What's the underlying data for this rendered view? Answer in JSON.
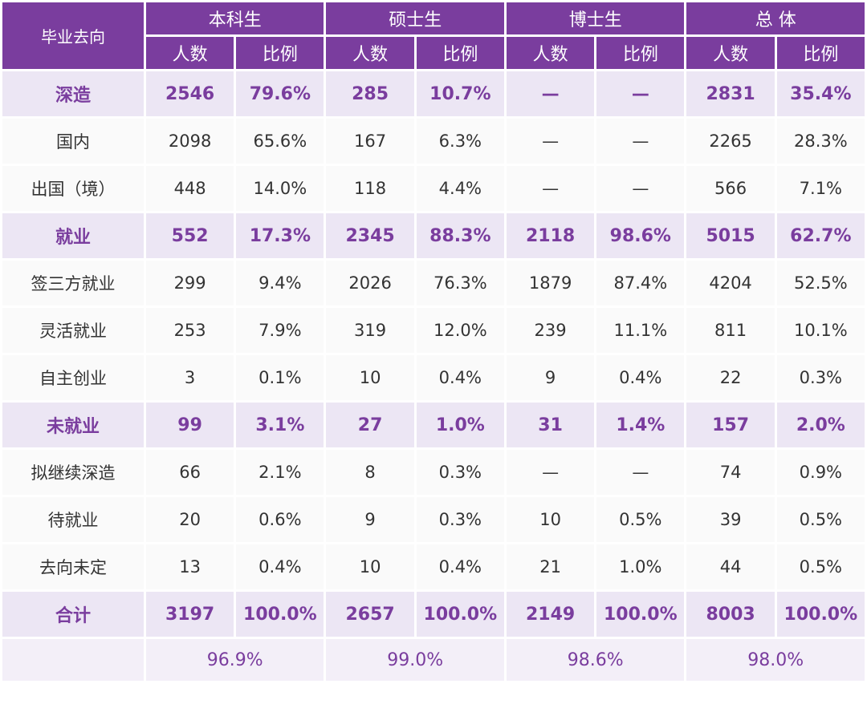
{
  "header": {
    "first": "毕业去向",
    "groups": [
      "本科生",
      "硕士生",
      "博士生",
      "总 体"
    ],
    "sub": [
      "人数",
      "比例"
    ]
  },
  "rows": [
    {
      "type": "cat",
      "label": "深造",
      "cells": [
        "2546",
        "79.6%",
        "285",
        "10.7%",
        "—",
        "—",
        "2831",
        "35.4%"
      ]
    },
    {
      "type": "sub",
      "label": "国内",
      "cells": [
        "2098",
        "65.6%",
        "167",
        "6.3%",
        "—",
        "—",
        "2265",
        "28.3%"
      ]
    },
    {
      "type": "sub",
      "label": "出国（境）",
      "cells": [
        "448",
        "14.0%",
        "118",
        "4.4%",
        "—",
        "—",
        "566",
        "7.1%"
      ]
    },
    {
      "type": "cat",
      "label": "就业",
      "cells": [
        "552",
        "17.3%",
        "2345",
        "88.3%",
        "2118",
        "98.6%",
        "5015",
        "62.7%"
      ]
    },
    {
      "type": "sub",
      "label": "签三方就业",
      "cells": [
        "299",
        "9.4%",
        "2026",
        "76.3%",
        "1879",
        "87.4%",
        "4204",
        "52.5%"
      ]
    },
    {
      "type": "sub",
      "label": "灵活就业",
      "cells": [
        "253",
        "7.9%",
        "319",
        "12.0%",
        "239",
        "11.1%",
        "811",
        "10.1%"
      ]
    },
    {
      "type": "sub",
      "label": "自主创业",
      "cells": [
        "3",
        "0.1%",
        "10",
        "0.4%",
        "9",
        "0.4%",
        "22",
        "0.3%"
      ]
    },
    {
      "type": "cat",
      "label": "未就业",
      "cells": [
        "99",
        "3.1%",
        "27",
        "1.0%",
        "31",
        "1.4%",
        "157",
        "2.0%"
      ]
    },
    {
      "type": "sub",
      "label": "拟继续深造",
      "cells": [
        "66",
        "2.1%",
        "8",
        "0.3%",
        "—",
        "—",
        "74",
        "0.9%"
      ]
    },
    {
      "type": "sub",
      "label": "待就业",
      "cells": [
        "20",
        "0.6%",
        "9",
        "0.3%",
        "10",
        "0.5%",
        "39",
        "0.5%"
      ]
    },
    {
      "type": "sub",
      "label": "去向未定",
      "cells": [
        "13",
        "0.4%",
        "10",
        "0.4%",
        "21",
        "1.0%",
        "44",
        "0.5%"
      ]
    },
    {
      "type": "total",
      "label": "合计",
      "cells": [
        "3197",
        "100.0%",
        "2657",
        "100.0%",
        "2149",
        "100.0%",
        "8003",
        "100.0%"
      ]
    }
  ],
  "rate_row": [
    "96.9%",
    "99.0%",
    "98.6%",
    "98.0%"
  ],
  "colors": {
    "header_bg": "#7a3d9e",
    "accent_text": "#7a3d9e",
    "category_bg": "#ece6f4",
    "row_bg": "#fafafa"
  }
}
